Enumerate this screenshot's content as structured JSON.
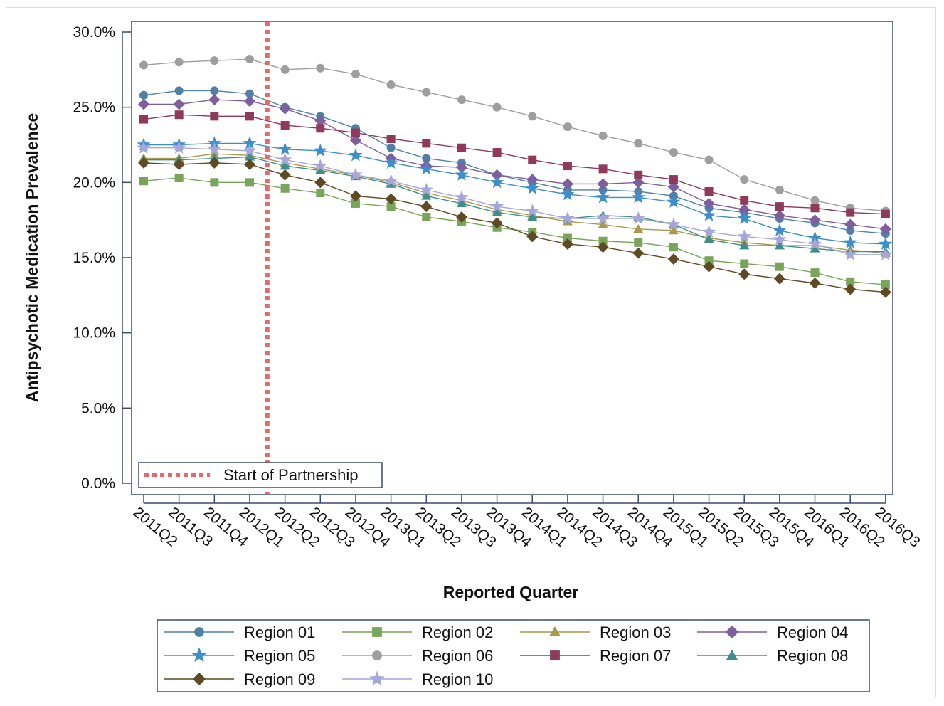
{
  "chart_data": {
    "type": "line",
    "title": "",
    "xlabel": "Reported Quarter",
    "ylabel": "Antipsychotic Medication Prevalence",
    "ylim": [
      0,
      30
    ],
    "y_ticks": [
      "0.0%",
      "5.0%",
      "10.0%",
      "15.0%",
      "20.0%",
      "25.0%",
      "30.0%"
    ],
    "y_tick_values": [
      0,
      5,
      10,
      15,
      20,
      25,
      30
    ],
    "categories": [
      "2011Q2",
      "2011Q3",
      "2011Q4",
      "2012Q1",
      "2012Q2",
      "2012Q3",
      "2012Q4",
      "2013Q1",
      "2013Q2",
      "2013Q3",
      "2013Q4",
      "2014Q1",
      "2014Q2",
      "2014Q3",
      "2014Q4",
      "2015Q1",
      "2015Q2",
      "2015Q3",
      "2015Q4",
      "2016Q1",
      "2016Q2",
      "2016Q3"
    ],
    "grid": false,
    "legend_position": "bottom",
    "reference_line": {
      "label": "Start of Partnership",
      "position": 3.5,
      "color": "#e8686a"
    },
    "series": [
      {
        "name": "Region 01",
        "marker": "circle",
        "color": "#4f81a8",
        "values": [
          25.8,
          26.1,
          26.1,
          25.9,
          25.0,
          24.4,
          23.6,
          22.3,
          21.6,
          21.3,
          20.5,
          20.0,
          19.5,
          19.5,
          19.4,
          19.1,
          18.3,
          18.0,
          17.6,
          17.3,
          16.8,
          16.6
        ]
      },
      {
        "name": "Region 02",
        "marker": "square",
        "color": "#78a55a",
        "values": [
          20.1,
          20.3,
          20.0,
          20.0,
          19.6,
          19.3,
          18.6,
          18.4,
          17.7,
          17.4,
          17.0,
          16.7,
          16.3,
          16.1,
          16.0,
          15.7,
          14.8,
          14.6,
          14.4,
          14.0,
          13.4,
          13.2
        ]
      },
      {
        "name": "Region 03",
        "marker": "triangle",
        "color": "#a79a4e",
        "values": [
          21.6,
          21.6,
          21.9,
          21.8,
          21.3,
          20.9,
          20.5,
          20.0,
          19.3,
          18.8,
          18.2,
          17.8,
          17.4,
          17.2,
          16.9,
          16.8,
          16.3,
          16.0,
          15.8,
          15.8,
          15.5,
          15.3
        ]
      },
      {
        "name": "Region 04",
        "marker": "diamond",
        "color": "#7d5fa0",
        "values": [
          25.2,
          25.2,
          25.5,
          25.4,
          24.9,
          24.1,
          22.8,
          21.6,
          21.1,
          21.0,
          20.5,
          20.2,
          19.9,
          19.9,
          20.0,
          19.7,
          18.6,
          18.2,
          17.8,
          17.5,
          17.2,
          16.9
        ]
      },
      {
        "name": "Region 05",
        "marker": "star",
        "color": "#3d8fc9",
        "values": [
          22.5,
          22.5,
          22.6,
          22.6,
          22.2,
          22.1,
          21.8,
          21.3,
          20.9,
          20.5,
          20.0,
          19.6,
          19.2,
          19.0,
          19.0,
          18.7,
          17.8,
          17.6,
          16.8,
          16.3,
          16.0,
          15.9
        ]
      },
      {
        "name": "Region 06",
        "marker": "circle",
        "color": "#9e9e9e",
        "values": [
          27.8,
          28.0,
          28.1,
          28.2,
          27.5,
          27.6,
          27.2,
          26.5,
          26.0,
          25.5,
          25.0,
          24.4,
          23.7,
          23.1,
          22.6,
          22.0,
          21.5,
          20.2,
          19.5,
          18.8,
          18.3,
          18.1
        ]
      },
      {
        "name": "Region 07",
        "marker": "square",
        "color": "#8f3a5a",
        "values": [
          24.2,
          24.5,
          24.4,
          24.4,
          23.8,
          23.6,
          23.3,
          22.9,
          22.6,
          22.3,
          22.0,
          21.5,
          21.1,
          20.9,
          20.5,
          20.2,
          19.4,
          18.8,
          18.4,
          18.3,
          18.0,
          17.9
        ]
      },
      {
        "name": "Region 08",
        "marker": "triangle",
        "color": "#3e8e8a",
        "values": [
          21.5,
          21.5,
          21.6,
          21.7,
          21.1,
          20.8,
          20.4,
          19.9,
          19.1,
          18.6,
          18.0,
          17.7,
          17.6,
          17.8,
          17.7,
          17.2,
          16.2,
          15.8,
          15.8,
          15.6,
          15.4,
          15.4
        ]
      },
      {
        "name": "Region 09",
        "marker": "diamond",
        "color": "#5e4a24",
        "values": [
          21.3,
          21.2,
          21.3,
          21.2,
          20.5,
          20.0,
          19.1,
          18.9,
          18.4,
          17.7,
          17.3,
          16.4,
          15.9,
          15.7,
          15.3,
          14.9,
          14.4,
          13.9,
          13.6,
          13.3,
          12.9,
          12.7
        ]
      },
      {
        "name": "Region 10",
        "marker": "star",
        "color": "#a6a6d9",
        "values": [
          22.3,
          22.3,
          22.2,
          22.1,
          21.5,
          21.1,
          20.5,
          20.1,
          19.5,
          19.0,
          18.4,
          18.1,
          17.6,
          17.6,
          17.6,
          17.2,
          16.7,
          16.4,
          16.2,
          15.9,
          15.2,
          15.2
        ]
      }
    ]
  }
}
